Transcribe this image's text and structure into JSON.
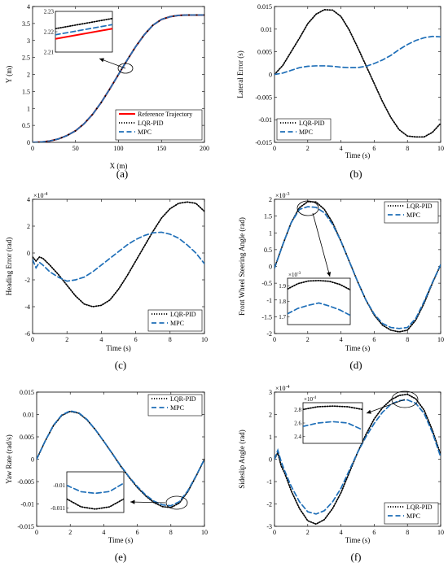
{
  "figure": {
    "series_styles": {
      "Reference Trajectory": {
        "color": "#ff0000",
        "dash": "none",
        "width": 2
      },
      "LQR-PID": {
        "color": "#000000",
        "dash": "1.2 1.8",
        "width": 1.7
      },
      "MPC": {
        "color": "#1f6fb8",
        "dash": "6 3.5",
        "width": 1.7
      }
    }
  },
  "chart_data": [
    {
      "id": "a",
      "type": "line",
      "caption": "(a)",
      "xlabel": "X (m)",
      "ylabel": "Y (m)",
      "xlim": [
        0,
        200
      ],
      "ylim": [
        0,
        4
      ],
      "xticks": [
        "0",
        "50",
        "100",
        "150",
        "200"
      ],
      "yticks": [
        "0",
        "0.5",
        "1",
        "1.5",
        "2",
        "2.5",
        "3",
        "3.5",
        "4"
      ],
      "legend": {
        "placement": "bottom-right",
        "entries": [
          "Reference Trajectory",
          "LQR-PID",
          "MPC"
        ]
      },
      "series": [
        {
          "name": "Reference Trajectory",
          "x": [
            0,
            10,
            20,
            30,
            40,
            50,
            60,
            70,
            80,
            90,
            100,
            110,
            120,
            130,
            140,
            150,
            160,
            170,
            180,
            190,
            200
          ],
          "y": [
            0,
            0.01,
            0.04,
            0.1,
            0.2,
            0.34,
            0.55,
            0.83,
            1.18,
            1.58,
            2.0,
            2.42,
            2.82,
            3.17,
            3.45,
            3.62,
            3.7,
            3.74,
            3.75,
            3.75,
            3.75
          ]
        },
        {
          "name": "LQR-PID",
          "x": [
            0,
            10,
            20,
            30,
            40,
            50,
            60,
            70,
            80,
            90,
            100,
            110,
            120,
            130,
            140,
            150,
            160,
            170,
            180,
            190,
            200
          ],
          "y": [
            0,
            0.01,
            0.04,
            0.1,
            0.2,
            0.34,
            0.55,
            0.83,
            1.18,
            1.58,
            2.0,
            2.42,
            2.82,
            3.17,
            3.45,
            3.62,
            3.7,
            3.74,
            3.75,
            3.75,
            3.75
          ]
        },
        {
          "name": "MPC",
          "x": [
            0,
            10,
            20,
            30,
            40,
            50,
            60,
            70,
            80,
            90,
            100,
            110,
            120,
            130,
            140,
            150,
            160,
            170,
            180,
            190,
            200
          ],
          "y": [
            0,
            0.01,
            0.04,
            0.1,
            0.2,
            0.34,
            0.55,
            0.83,
            1.18,
            1.58,
            2.0,
            2.42,
            2.82,
            3.17,
            3.45,
            3.62,
            3.7,
            3.74,
            3.75,
            3.75,
            3.75
          ]
        }
      ],
      "inset": {
        "ylim": [
          2.21,
          2.23
        ],
        "yticks": [
          "2.21",
          "2.22",
          "2.23"
        ],
        "xlim": [
          0,
          1
        ],
        "series": [
          {
            "name": "Reference Trajectory",
            "x": [
              0,
              1
            ],
            "y": [
              2.2165,
              2.2215
            ]
          },
          {
            "name": "LQR-PID",
            "x": [
              0,
              1
            ],
            "y": [
              2.2215,
              2.2265
            ]
          },
          {
            "name": "MPC",
            "x": [
              0,
              1
            ],
            "y": [
              2.2185,
              2.2235
            ]
          }
        ]
      }
    },
    {
      "id": "b",
      "type": "line",
      "caption": "(b)",
      "xlabel": "Time (s)",
      "ylabel": "Lateral Error (s)",
      "xlim": [
        0,
        10
      ],
      "ylim": [
        -0.015,
        0.015
      ],
      "xticks": [
        "0",
        "2",
        "4",
        "6",
        "8",
        "10"
      ],
      "yticks": [
        "-0.015",
        "-0.01",
        "-0.005",
        "0",
        "0.005",
        "0.01",
        "0.015"
      ],
      "legend": {
        "placement": "bottom-left",
        "entries": [
          "LQR-PID",
          "MPC"
        ]
      },
      "series": [
        {
          "name": "LQR-PID",
          "x": [
            0,
            0.5,
            1,
            1.5,
            2,
            2.5,
            3,
            3.5,
            4,
            4.5,
            5,
            5.5,
            6,
            6.5,
            7,
            7.5,
            8,
            8.5,
            9,
            9.5,
            10
          ],
          "y": [
            0,
            0.002,
            0.005,
            0.008,
            0.0112,
            0.0133,
            0.0143,
            0.0142,
            0.0128,
            0.0098,
            0.006,
            0.002,
            -0.002,
            -0.006,
            -0.0095,
            -0.0122,
            -0.0136,
            -0.0138,
            -0.0138,
            -0.0128,
            -0.0108
          ]
        },
        {
          "name": "MPC",
          "x": [
            0,
            0.5,
            1,
            1.5,
            2,
            2.5,
            3,
            3.5,
            4,
            4.5,
            5,
            5.5,
            6,
            6.5,
            7,
            7.5,
            8,
            8.5,
            9,
            9.5,
            10
          ],
          "y": [
            0,
            0.0003,
            0.0009,
            0.0015,
            0.0018,
            0.0019,
            0.0019,
            0.0018,
            0.0016,
            0.0015,
            0.0015,
            0.0018,
            0.0024,
            0.0032,
            0.0042,
            0.0055,
            0.0066,
            0.0075,
            0.0081,
            0.0084,
            0.0083
          ]
        }
      ]
    },
    {
      "id": "c",
      "type": "line",
      "caption": "(c)",
      "xlabel": "Time (s)",
      "ylabel": "Heading Error (rad)",
      "xlim": [
        0,
        10
      ],
      "ylim": [
        -6,
        4
      ],
      "multiplier": "×10",
      "multiplier_exp": "-4",
      "xticks": [
        "0",
        "2",
        "4",
        "6",
        "8",
        "10"
      ],
      "yticks": [
        "-6",
        "-4",
        "-2",
        "0",
        "2",
        "4"
      ],
      "legend": {
        "placement": "bottom-right",
        "entries": [
          "LQR-PID",
          "MPC"
        ]
      },
      "series": [
        {
          "name": "LQR-PID",
          "x": [
            0,
            0.2,
            0.4,
            0.6,
            1,
            1.5,
            2,
            2.5,
            3,
            3.5,
            4,
            4.5,
            5,
            5.5,
            6,
            6.5,
            7,
            7.5,
            8,
            8.5,
            9,
            9.5,
            10
          ],
          "y": [
            -0.3,
            -0.6,
            -0.3,
            -0.4,
            -0.9,
            -1.6,
            -2.4,
            -3.2,
            -3.8,
            -4.0,
            -3.9,
            -3.5,
            -2.7,
            -1.7,
            -0.6,
            0.5,
            1.6,
            2.6,
            3.3,
            3.7,
            3.8,
            3.7,
            3.1
          ]
        },
        {
          "name": "MPC",
          "x": [
            0,
            0.2,
            0.4,
            0.6,
            1,
            1.5,
            2,
            2.5,
            3,
            3.5,
            4,
            4.5,
            5,
            5.5,
            6,
            6.5,
            7,
            7.5,
            8,
            8.5,
            9,
            9.5,
            10
          ],
          "y": [
            -0.5,
            -1.1,
            -0.7,
            -0.9,
            -1.4,
            -1.8,
            -2.1,
            -2.0,
            -1.8,
            -1.4,
            -0.9,
            -0.4,
            0.1,
            0.6,
            1.0,
            1.3,
            1.5,
            1.55,
            1.4,
            1.1,
            0.6,
            0.0,
            -0.8
          ]
        }
      ]
    },
    {
      "id": "d",
      "type": "line",
      "caption": "(d)",
      "xlabel": "Time (s)",
      "ylabel": "Front Wheel Steering Angle (rad)",
      "xlim": [
        0,
        10
      ],
      "ylim": [
        -2,
        2
      ],
      "multiplier": "×10",
      "multiplier_exp": "-3",
      "xticks": [
        "0",
        "2",
        "4",
        "6",
        "8",
        "10"
      ],
      "yticks": [
        "-2",
        "-1.5",
        "-1",
        "-0.5",
        "0",
        "0.5",
        "1",
        "1.5",
        "2"
      ],
      "legend": {
        "placement": "top-right",
        "entries": [
          "LQR-PID",
          "MPC"
        ]
      },
      "series": [
        {
          "name": "LQR-PID",
          "x": [
            0,
            0.5,
            1,
            1.5,
            2,
            2.5,
            3,
            3.5,
            4,
            4.5,
            5,
            5.5,
            6,
            6.5,
            7,
            7.5,
            8,
            8.5,
            9,
            9.5,
            10
          ],
          "y": [
            -0.05,
            0.65,
            1.3,
            1.75,
            1.93,
            1.92,
            1.7,
            1.3,
            0.75,
            0.15,
            -0.45,
            -1.0,
            -1.45,
            -1.75,
            -1.9,
            -1.95,
            -1.9,
            -1.6,
            -1.1,
            -0.5,
            0.05
          ]
        },
        {
          "name": "MPC",
          "x": [
            0,
            0.5,
            1,
            1.5,
            2,
            2.5,
            3,
            3.5,
            4,
            4.5,
            5,
            5.5,
            6,
            6.5,
            7,
            7.5,
            8,
            8.5,
            9,
            9.5,
            10
          ],
          "y": [
            -0.05,
            0.65,
            1.3,
            1.7,
            1.78,
            1.76,
            1.6,
            1.25,
            0.75,
            0.15,
            -0.45,
            -1.0,
            -1.42,
            -1.7,
            -1.82,
            -1.85,
            -1.82,
            -1.55,
            -1.05,
            -0.48,
            0.05
          ]
        }
      ],
      "inset": {
        "ylim": [
          1.65,
          1.95
        ],
        "yticks": [
          "1.7",
          "1.8",
          "1.9"
        ],
        "multiplier": "×10",
        "multiplier_exp": "-3",
        "xlim": [
          1.5,
          3.0
        ],
        "series": [
          {
            "name": "LQR-PID",
            "x": [
              1.5,
              1.75,
              2,
              2.25,
              2.5,
              2.75,
              3
            ],
            "y": [
              1.88,
              1.915,
              1.932,
              1.935,
              1.93,
              1.91,
              1.875
            ]
          },
          {
            "name": "MPC",
            "x": [
              1.5,
              1.75,
              2,
              2.25,
              2.5,
              2.75,
              3
            ],
            "y": [
              1.72,
              1.755,
              1.775,
              1.79,
              1.77,
              1.745,
              1.71
            ]
          }
        ]
      }
    },
    {
      "id": "e",
      "type": "line",
      "caption": "(e)",
      "xlabel": "Time (s)",
      "ylabel": "Yaw Rate (rad/s)",
      "xlim": [
        0,
        10
      ],
      "ylim": [
        -0.015,
        0.015
      ],
      "xticks": [
        "0",
        "2",
        "4",
        "6",
        "8",
        "10"
      ],
      "yticks": [
        "-0.015",
        "-0.01",
        "-0.005",
        "0",
        "0.005",
        "0.01",
        "0.015"
      ],
      "legend": {
        "placement": "top-right",
        "entries": [
          "LQR-PID",
          "MPC"
        ]
      },
      "series": [
        {
          "name": "LQR-PID",
          "x": [
            0,
            0.5,
            1,
            1.5,
            2,
            2.5,
            3,
            3.5,
            4,
            4.5,
            5,
            5.5,
            6,
            6.5,
            7,
            7.5,
            8,
            8.5,
            9,
            9.5,
            10
          ],
          "y": [
            0,
            0.004,
            0.0075,
            0.0098,
            0.0107,
            0.0103,
            0.0088,
            0.0066,
            0.004,
            0.0013,
            -0.0015,
            -0.004,
            -0.0063,
            -0.0082,
            -0.0097,
            -0.0106,
            -0.0108,
            -0.0098,
            -0.0073,
            -0.0038,
            0.0
          ]
        },
        {
          "name": "MPC",
          "x": [
            0,
            0.5,
            1,
            1.5,
            2,
            2.5,
            3,
            3.5,
            4,
            4.5,
            5,
            5.5,
            6,
            6.5,
            7,
            7.5,
            8,
            8.5,
            9,
            9.5,
            10
          ],
          "y": [
            0,
            0.004,
            0.0076,
            0.0099,
            0.0108,
            0.0104,
            0.0089,
            0.0066,
            0.004,
            0.0013,
            -0.0014,
            -0.0039,
            -0.0061,
            -0.008,
            -0.0094,
            -0.0102,
            -0.0104,
            -0.0095,
            -0.0071,
            -0.0037,
            0.0
          ]
        }
      ],
      "inset": {
        "ylim": [
          -0.0112,
          -0.0094
        ],
        "yticks": [
          "-0.01",
          "-0.011"
        ],
        "xlim": [
          7,
          9
        ],
        "series": [
          {
            "name": "LQR-PID",
            "x": [
              7,
              7.5,
              8,
              8.5,
              9
            ],
            "y": [
              -0.0106,
              -0.01095,
              -0.01105,
              -0.01095,
              -0.0106
            ]
          },
          {
            "name": "MPC",
            "x": [
              7,
              7.5,
              8,
              8.5,
              9
            ],
            "y": [
              -0.01,
              -0.01028,
              -0.01035,
              -0.01027,
              -0.0099
            ]
          }
        ]
      }
    },
    {
      "id": "f",
      "type": "line",
      "caption": "(f)",
      "xlabel": "Time (s)",
      "ylabel": "Sideslip Angle (rad)",
      "xlim": [
        0,
        10
      ],
      "ylim": [
        -3,
        3
      ],
      "multiplier": "×10",
      "multiplier_exp": "-4",
      "xticks": [
        "0",
        "2",
        "4",
        "6",
        "8",
        "10"
      ],
      "yticks": [
        "-3",
        "-2",
        "-1",
        "0",
        "1",
        "2",
        "3"
      ],
      "legend": {
        "placement": "bottom-right",
        "entries": [
          "LQR-PID",
          "MPC"
        ]
      },
      "series": [
        {
          "name": "LQR-PID",
          "x": [
            0,
            0.2,
            0.4,
            0.6,
            1,
            1.5,
            2,
            2.5,
            3,
            3.5,
            4,
            4.5,
            5,
            5.5,
            6,
            6.5,
            7,
            7.5,
            8,
            8.5,
            9,
            9.5,
            10
          ],
          "y": [
            0,
            0.3,
            -0.3,
            -0.6,
            -1.4,
            -2.2,
            -2.75,
            -2.9,
            -2.7,
            -2.2,
            -1.5,
            -0.6,
            0.3,
            1.1,
            1.8,
            2.3,
            2.65,
            2.85,
            2.9,
            2.7,
            2.2,
            1.3,
            0.2
          ]
        },
        {
          "name": "MPC",
          "x": [
            0,
            0.2,
            0.4,
            0.6,
            1,
            1.5,
            2,
            2.5,
            3,
            3.5,
            4,
            4.5,
            5,
            5.5,
            6,
            6.5,
            7,
            7.5,
            8,
            8.5,
            9,
            9.5,
            10
          ],
          "y": [
            0,
            0.4,
            -0.1,
            -0.5,
            -1.2,
            -1.9,
            -2.35,
            -2.45,
            -2.3,
            -1.9,
            -1.3,
            -0.5,
            0.3,
            1.0,
            1.6,
            2.1,
            2.45,
            2.62,
            2.65,
            2.5,
            2.05,
            1.2,
            0.1
          ]
        }
      ],
      "inset": {
        "ylim": [
          2.3,
          2.9
        ],
        "yticks": [
          "2.4",
          "2.6",
          "2.8"
        ],
        "multiplier": "×10",
        "multiplier_exp": "-4",
        "xlim": [
          7.5,
          8.5
        ],
        "series": [
          {
            "name": "LQR-PID",
            "x": [
              7.5,
              7.75,
              8,
              8.25,
              8.5
            ],
            "y": [
              2.8,
              2.84,
              2.85,
              2.84,
              2.8
            ]
          },
          {
            "name": "MPC",
            "x": [
              7.5,
              7.75,
              8,
              8.25,
              8.5
            ],
            "y": [
              2.55,
              2.6,
              2.62,
              2.6,
              2.5
            ]
          }
        ]
      }
    }
  ]
}
